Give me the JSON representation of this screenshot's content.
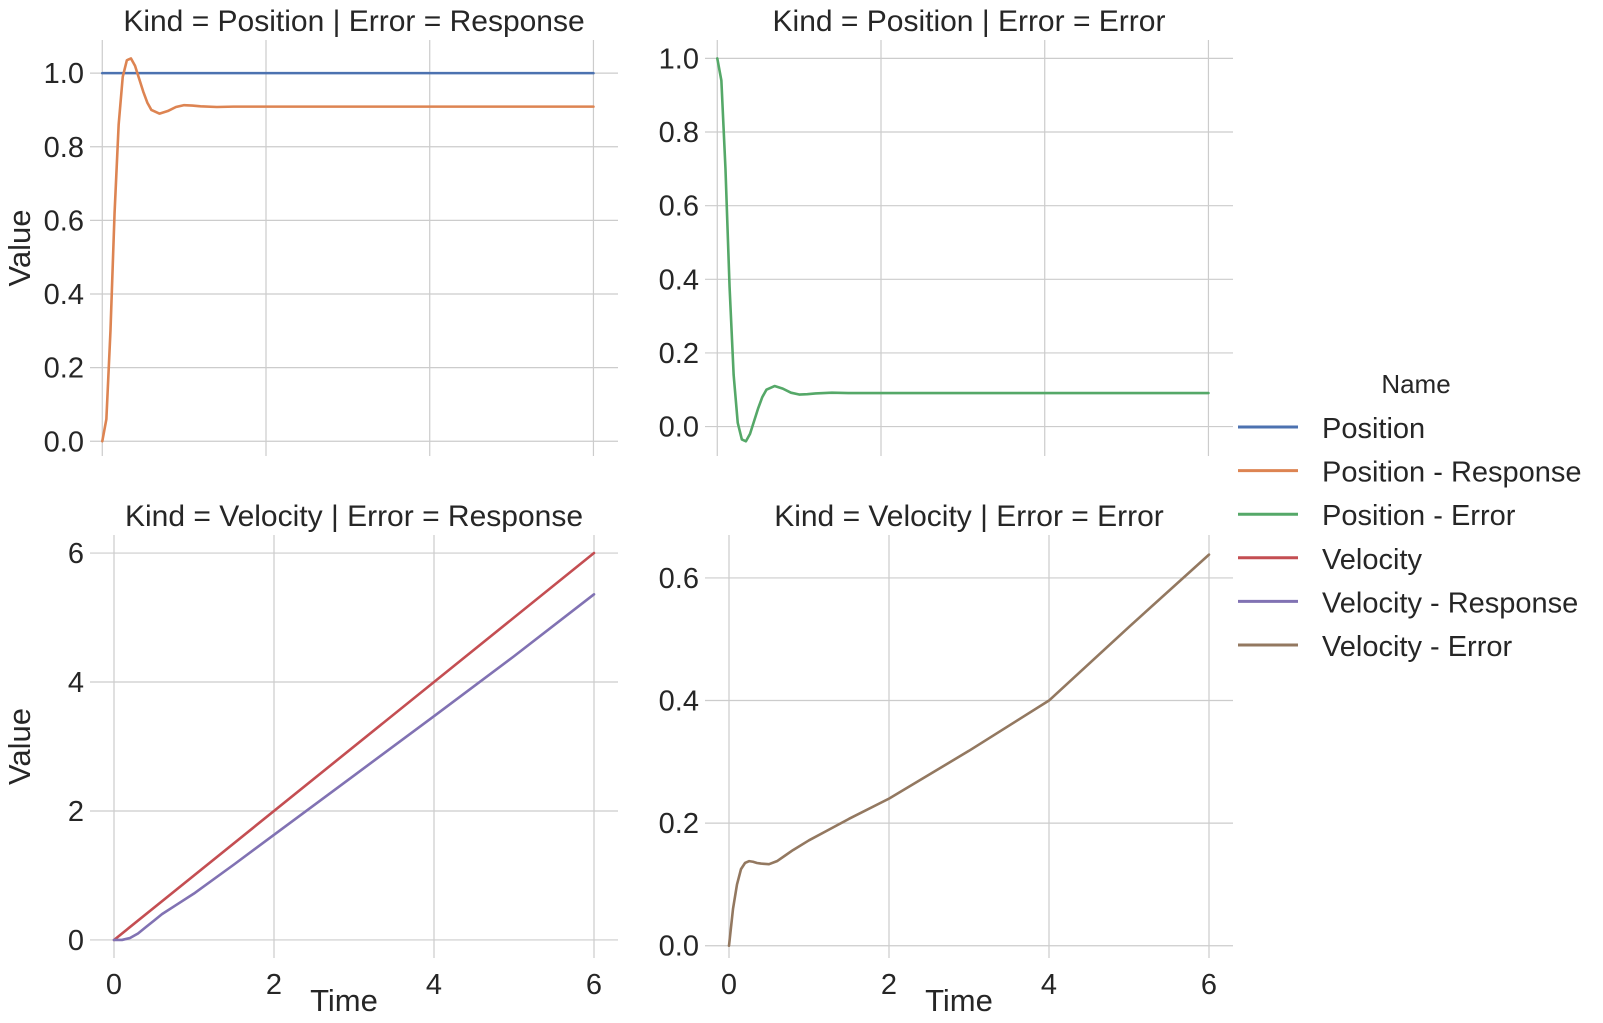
{
  "chart_data": {
    "type": "line",
    "layout": "facet-grid 2x2",
    "x_label": "Time",
    "y_label": "Value",
    "legend": {
      "title": "Name",
      "placement": "right",
      "items": [
        {
          "name": "Position",
          "color": "#4c72b0"
        },
        {
          "name": "Position - Response",
          "color": "#dd8452"
        },
        {
          "name": "Position - Error",
          "color": "#55a868"
        },
        {
          "name": "Velocity",
          "color": "#c44e52"
        },
        {
          "name": "Velocity - Response",
          "color": "#8172b3"
        },
        {
          "name": "Velocity - Error",
          "color": "#937860"
        }
      ]
    },
    "grid": true,
    "panels": [
      {
        "title": "Kind = Position | Error = Response",
        "xlim": [
          -0.15,
          6.3
        ],
        "ylim": [
          -0.04,
          1.09
        ],
        "xticks": [
          "0",
          "2",
          "4",
          "6"
        ],
        "show_xticks": false,
        "yticks": [
          "0.0",
          "0.2",
          "0.4",
          "0.6",
          "0.8",
          "1.0"
        ],
        "show_ylabel": true,
        "show_xlabel": false,
        "series": [
          {
            "name": "Position",
            "color": "#4c72b0",
            "x": [
              0,
              6
            ],
            "y": [
              1.0,
              1.0
            ]
          },
          {
            "name": "Position - Response",
            "color": "#dd8452",
            "x": [
              0,
              0.05,
              0.1,
              0.15,
              0.2,
              0.25,
              0.3,
              0.35,
              0.4,
              0.45,
              0.5,
              0.55,
              0.6,
              0.7,
              0.8,
              0.9,
              1.0,
              1.1,
              1.2,
              1.4,
              1.6,
              2.0,
              3.0,
              4.0,
              5.0,
              6.0
            ],
            "y": [
              0.0,
              0.06,
              0.3,
              0.62,
              0.86,
              0.99,
              1.035,
              1.04,
              1.02,
              0.985,
              0.95,
              0.92,
              0.9,
              0.89,
              0.897,
              0.908,
              0.913,
              0.912,
              0.91,
              0.908,
              0.909,
              0.909,
              0.909,
              0.909,
              0.909,
              0.909
            ]
          }
        ]
      },
      {
        "title": "Kind = Position | Error = Error",
        "xlim": [
          -0.15,
          6.3
        ],
        "ylim": [
          -0.08,
          1.05
        ],
        "xticks": [
          "0",
          "2",
          "4",
          "6"
        ],
        "show_xticks": false,
        "yticks": [
          "0.0",
          "0.2",
          "0.4",
          "0.6",
          "0.8",
          "1.0"
        ],
        "show_ylabel": false,
        "show_xlabel": false,
        "series": [
          {
            "name": "Position - Error",
            "color": "#55a868",
            "x": [
              0,
              0.05,
              0.1,
              0.15,
              0.2,
              0.25,
              0.3,
              0.35,
              0.4,
              0.45,
              0.5,
              0.55,
              0.6,
              0.7,
              0.8,
              0.9,
              1.0,
              1.1,
              1.2,
              1.4,
              1.6,
              2.0,
              3.0,
              4.0,
              5.0,
              6.0
            ],
            "y": [
              1.0,
              0.94,
              0.7,
              0.38,
              0.14,
              0.01,
              -0.035,
              -0.04,
              -0.02,
              0.015,
              0.05,
              0.08,
              0.1,
              0.11,
              0.103,
              0.092,
              0.087,
              0.088,
              0.09,
              0.092,
              0.091,
              0.091,
              0.091,
              0.091,
              0.091,
              0.091
            ]
          }
        ]
      },
      {
        "title": "Kind = Velocity | Error = Response",
        "xlim": [
          -0.3,
          6.3
        ],
        "ylim": [
          -0.28,
          6.28
        ],
        "xticks": [
          "0",
          "2",
          "4",
          "6"
        ],
        "show_xticks": true,
        "yticks": [
          "0",
          "2",
          "4",
          "6"
        ],
        "show_ylabel": true,
        "show_xlabel": true,
        "series": [
          {
            "name": "Velocity",
            "color": "#c44e52",
            "x": [
              0,
              6
            ],
            "y": [
              0,
              6
            ]
          },
          {
            "name": "Velocity - Response",
            "color": "#8172b3",
            "x": [
              0,
              0.1,
              0.2,
              0.3,
              0.4,
              0.5,
              0.6,
              0.8,
              1.0,
              1.5,
              2.0,
              3.0,
              4.0,
              5.0,
              6.0
            ],
            "y": [
              0.0,
              0.0,
              0.03,
              0.1,
              0.2,
              0.3,
              0.4,
              0.56,
              0.72,
              1.17,
              1.63,
              2.55,
              3.47,
              4.4,
              5.36
            ]
          }
        ]
      },
      {
        "title": "Kind = Velocity | Error = Error",
        "xlim": [
          -0.3,
          6.3
        ],
        "ylim": [
          -0.02,
          0.67
        ],
        "xticks": [
          "0",
          "2",
          "4",
          "6"
        ],
        "show_xticks": true,
        "yticks": [
          "0.0",
          "0.2",
          "0.4",
          "0.6"
        ],
        "show_ylabel": false,
        "show_xlabel": true,
        "series": [
          {
            "name": "Velocity - Error",
            "color": "#937860",
            "x": [
              0,
              0.05,
              0.1,
              0.15,
              0.2,
              0.25,
              0.3,
              0.35,
              0.4,
              0.5,
              0.6,
              0.7,
              0.8,
              1.0,
              1.2,
              1.5,
              2.0,
              3.0,
              4.0,
              5.0,
              6.0
            ],
            "y": [
              0.0,
              0.06,
              0.1,
              0.125,
              0.135,
              0.138,
              0.137,
              0.135,
              0.134,
              0.133,
              0.138,
              0.147,
              0.156,
              0.172,
              0.186,
              0.207,
              0.24,
              0.318,
              0.4,
              0.52,
              0.638
            ]
          }
        ]
      }
    ]
  }
}
